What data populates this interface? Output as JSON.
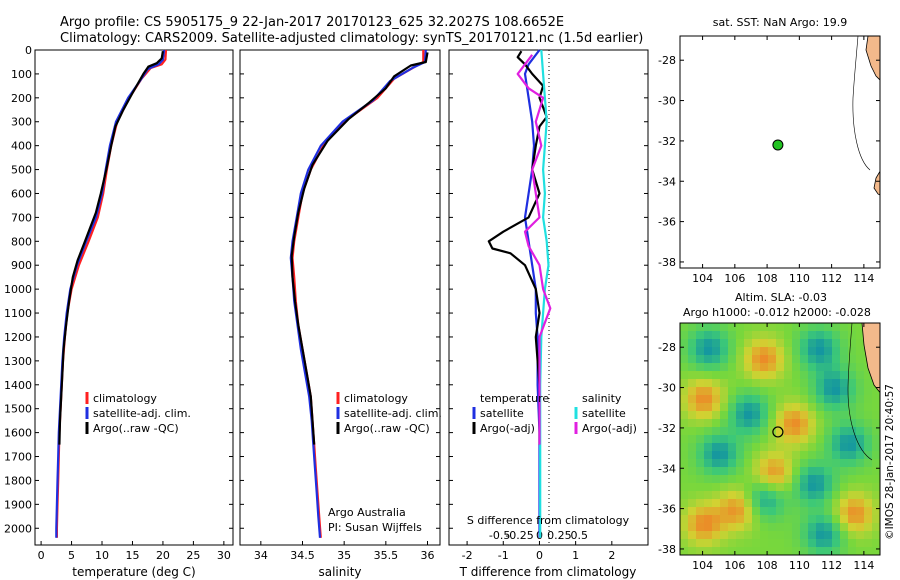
{
  "header": {
    "line1": "Argo profile: CS 5905175_9 22-Jan-2017 20170123_625 32.2027S 108.6652E",
    "line2": "Climatology: CARS2009. Satellite-adjusted climatology: synTS_20170121.nc (1.5d earlier)"
  },
  "colors": {
    "red": "#ff2020",
    "blue": "#1f2fe0",
    "black": "#000000",
    "cyan": "#20e0e0",
    "magenta": "#e020e0",
    "land": "#f3b98b"
  },
  "chart_data": [
    {
      "id": "temperature",
      "type": "line",
      "xlabel": "temperature (deg C)",
      "ylabel": "",
      "xlim": [
        -1,
        31.5
      ],
      "ylim": [
        2070,
        0
      ],
      "xticks": [
        0,
        5,
        10,
        15,
        20,
        25,
        30
      ],
      "yticks": [
        0,
        100,
        200,
        300,
        400,
        500,
        600,
        700,
        800,
        900,
        1000,
        1100,
        1200,
        1300,
        1400,
        1500,
        1600,
        1700,
        1800,
        1900,
        2000
      ],
      "ytick_labels": [
        "0",
        "100",
        "200",
        "300",
        "400",
        "500",
        "600",
        "700",
        "800",
        "900",
        "1000",
        "1100",
        "1200",
        "1300",
        "1400",
        "1500",
        "1600",
        "1700",
        "1800",
        "1900",
        "2000"
      ],
      "legend": [
        "climatology",
        "satellite-adj. clim.",
        "Argo(..raw -QC)"
      ],
      "series": [
        {
          "name": "climatology",
          "color": "red",
          "points": [
            [
              20.5,
              0
            ],
            [
              20.4,
              40
            ],
            [
              19.8,
              60
            ],
            [
              18,
              75
            ],
            [
              16.5,
              120
            ],
            [
              14.5,
              200
            ],
            [
              12.5,
              300
            ],
            [
              11.5,
              400
            ],
            [
              10.8,
              500
            ],
            [
              10.2,
              600
            ],
            [
              9.3,
              700
            ],
            [
              7.8,
              800
            ],
            [
              6.2,
              900
            ],
            [
              5,
              1000
            ],
            [
              4.3,
              1100
            ],
            [
              3.9,
              1200
            ],
            [
              3.6,
              1300
            ],
            [
              3.4,
              1400
            ],
            [
              3.2,
              1500
            ],
            [
              3.0,
              1600
            ],
            [
              2.9,
              1700
            ],
            [
              2.8,
              1800
            ],
            [
              2.7,
              1900
            ],
            [
              2.6,
              2000
            ],
            [
              2.6,
              2040
            ]
          ]
        },
        {
          "name": "satellite-adj. clim.",
          "color": "blue",
          "points": [
            [
              20.2,
              0
            ],
            [
              20.0,
              40
            ],
            [
              19.3,
              60
            ],
            [
              17.5,
              80
            ],
            [
              16.2,
              130
            ],
            [
              14.3,
              200
            ],
            [
              12.3,
              300
            ],
            [
              11.3,
              400
            ],
            [
              10.6,
              500
            ],
            [
              10.0,
              600
            ],
            [
              9.0,
              700
            ],
            [
              7.4,
              800
            ],
            [
              5.9,
              900
            ],
            [
              4.8,
              1000
            ],
            [
              4.2,
              1100
            ],
            [
              3.8,
              1200
            ],
            [
              3.5,
              1300
            ],
            [
              3.3,
              1400
            ],
            [
              3.1,
              1500
            ],
            [
              2.9,
              1600
            ],
            [
              2.8,
              1700
            ],
            [
              2.7,
              1800
            ],
            [
              2.6,
              1900
            ],
            [
              2.5,
              2000
            ],
            [
              2.5,
              2040
            ]
          ]
        },
        {
          "name": "Argo(..raw -QC)",
          "color": "black",
          "points": [
            [
              20.0,
              5
            ],
            [
              19.8,
              35
            ],
            [
              19.0,
              55
            ],
            [
              17.6,
              70
            ],
            [
              16.8,
              100
            ],
            [
              15.0,
              180
            ],
            [
              13.5,
              250
            ],
            [
              12.2,
              320
            ],
            [
              11.5,
              400
            ],
            [
              10.7,
              500
            ],
            [
              9.8,
              600
            ],
            [
              9.0,
              680
            ],
            [
              7.2,
              800
            ],
            [
              6.0,
              880
            ],
            [
              5.2,
              950
            ],
            [
              4.6,
              1050
            ],
            [
              4.1,
              1150
            ],
            [
              3.7,
              1250
            ],
            [
              3.5,
              1350
            ],
            [
              3.3,
              1450
            ],
            [
              3.1,
              1550
            ],
            [
              3.0,
              1650
            ]
          ]
        }
      ]
    },
    {
      "id": "salinity",
      "type": "line",
      "xlabel": "salinity",
      "xlim": [
        33.75,
        36.15
      ],
      "ylim": [
        2070,
        0
      ],
      "xticks": [
        34,
        34.5,
        35,
        35.5,
        36
      ],
      "xtick_labels": [
        "34",
        "34.5",
        "35",
        "35.5",
        "36"
      ],
      "legend": [
        "climatology",
        "satellite-adj. clim.",
        "Argo(..raw -QC)"
      ],
      "annotation": [
        "Argo Australia",
        "PI: Susan Wijffels"
      ],
      "series": [
        {
          "name": "climatology",
          "color": "red",
          "points": [
            [
              35.95,
              0
            ],
            [
              35.95,
              50
            ],
            [
              35.85,
              70
            ],
            [
              35.6,
              120
            ],
            [
              35.4,
              200
            ],
            [
              35.0,
              300
            ],
            [
              34.75,
              400
            ],
            [
              34.6,
              500
            ],
            [
              34.5,
              600
            ],
            [
              34.45,
              700
            ],
            [
              34.4,
              800
            ],
            [
              34.38,
              870
            ],
            [
              34.4,
              950
            ],
            [
              34.42,
              1050
            ],
            [
              34.45,
              1150
            ],
            [
              34.5,
              1250
            ],
            [
              34.55,
              1350
            ],
            [
              34.6,
              1450
            ],
            [
              34.62,
              1550
            ],
            [
              34.64,
              1650
            ],
            [
              34.66,
              1750
            ],
            [
              34.68,
              1850
            ],
            [
              34.7,
              1950
            ],
            [
              34.72,
              2040
            ]
          ]
        },
        {
          "name": "satellite-adj. clim.",
          "color": "blue",
          "points": [
            [
              35.98,
              0
            ],
            [
              35.97,
              50
            ],
            [
              35.82,
              75
            ],
            [
              35.55,
              130
            ],
            [
              35.35,
              210
            ],
            [
              34.98,
              300
            ],
            [
              34.72,
              400
            ],
            [
              34.57,
              500
            ],
            [
              34.48,
              600
            ],
            [
              34.43,
              700
            ],
            [
              34.38,
              800
            ],
            [
              34.36,
              870
            ],
            [
              34.38,
              950
            ],
            [
              34.4,
              1050
            ],
            [
              34.44,
              1150
            ],
            [
              34.48,
              1250
            ],
            [
              34.53,
              1350
            ],
            [
              34.58,
              1450
            ],
            [
              34.61,
              1550
            ],
            [
              34.63,
              1650
            ],
            [
              34.65,
              1750
            ],
            [
              34.67,
              1850
            ],
            [
              34.69,
              1950
            ],
            [
              34.71,
              2040
            ]
          ]
        },
        {
          "name": "Argo(..raw -QC)",
          "color": "black",
          "points": [
            [
              36.0,
              10
            ],
            [
              35.98,
              50
            ],
            [
              35.8,
              65
            ],
            [
              35.6,
              110
            ],
            [
              35.5,
              160
            ],
            [
              35.3,
              220
            ],
            [
              35.05,
              290
            ],
            [
              34.8,
              380
            ],
            [
              34.62,
              480
            ],
            [
              34.52,
              580
            ],
            [
              34.45,
              680
            ],
            [
              34.4,
              780
            ],
            [
              34.37,
              860
            ],
            [
              34.38,
              950
            ],
            [
              34.41,
              1050
            ],
            [
              34.45,
              1150
            ],
            [
              34.5,
              1250
            ],
            [
              34.55,
              1350
            ],
            [
              34.6,
              1450
            ],
            [
              34.62,
              1550
            ],
            [
              34.64,
              1650
            ]
          ]
        }
      ]
    },
    {
      "id": "difference",
      "type": "line",
      "xlabel": "T difference from climatology",
      "xlabel_top": "S difference from climatology",
      "xlim": [
        -2.5,
        3
      ],
      "ylim": [
        2070,
        0
      ],
      "xticks": [
        -2,
        -1,
        0,
        1,
        2
      ],
      "xtick_labels": [
        "-2",
        "-1",
        "0",
        "1",
        "2"
      ],
      "s_ticks": [
        -0.5,
        -0.25,
        0,
        0.25,
        0.5
      ],
      "s_tick_labels": [
        "-0.5",
        "-0.25",
        "0",
        "0.25",
        "0.5"
      ],
      "legend_t_title": "temperature",
      "legend_s_title": "salinity",
      "legend": [
        "satellite",
        "Argo(-adj)",
        "satellite",
        "Argo(-adj)"
      ],
      "series": [
        {
          "name": "T satellite",
          "color": "blue",
          "points": [
            [
              0,
              0
            ],
            [
              -0.3,
              60
            ],
            [
              -0.4,
              100
            ],
            [
              -0.3,
              200
            ],
            [
              -0.2,
              300
            ],
            [
              -0.15,
              400
            ],
            [
              -0.2,
              500
            ],
            [
              -0.3,
              600
            ],
            [
              -0.4,
              700
            ],
            [
              -0.3,
              800
            ],
            [
              -0.2,
              900
            ],
            [
              -0.1,
              1000
            ],
            [
              -0.1,
              1100
            ],
            [
              -0.05,
              1200
            ],
            [
              -0.05,
              1400
            ],
            [
              0,
              1600
            ],
            [
              0,
              2040
            ]
          ]
        },
        {
          "name": "T Argo(-adj)",
          "color": "black",
          "points": [
            [
              -0.5,
              5
            ],
            [
              -0.6,
              30
            ],
            [
              -0.4,
              60
            ],
            [
              -0.2,
              100
            ],
            [
              0.1,
              150
            ],
            [
              0,
              200
            ],
            [
              0.2,
              280
            ],
            [
              0,
              320
            ],
            [
              -0.1,
              400
            ],
            [
              -0.2,
              500
            ],
            [
              0,
              600
            ],
            [
              -0.3,
              700
            ],
            [
              -1.0,
              760
            ],
            [
              -1.4,
              800
            ],
            [
              -1.3,
              830
            ],
            [
              -0.8,
              850
            ],
            [
              -0.4,
              900
            ],
            [
              -0.1,
              1000
            ],
            [
              0,
              1100
            ],
            [
              -0.1,
              1200
            ],
            [
              -0.05,
              1300
            ],
            [
              0,
              1400
            ],
            [
              0,
              1650
            ]
          ]
        },
        {
          "name": "S satellite",
          "color": "cyan",
          "points": [
            [
              0.05,
              0
            ],
            [
              0.1,
              100
            ],
            [
              0.15,
              200
            ],
            [
              0.2,
              300
            ],
            [
              0.15,
              400
            ],
            [
              0.1,
              500
            ],
            [
              0.15,
              600
            ],
            [
              0.1,
              700
            ],
            [
              0.2,
              800
            ],
            [
              0.25,
              900
            ],
            [
              0.15,
              1000
            ],
            [
              0.1,
              1100
            ],
            [
              0.05,
              1200
            ],
            [
              0.02,
              1400
            ],
            [
              0.02,
              2040
            ]
          ]
        },
        {
          "name": "S Argo(-adj)",
          "color": "magenta",
          "points": [
            [
              -0.2,
              20
            ],
            [
              -0.6,
              100
            ],
            [
              -0.3,
              160
            ],
            [
              0.1,
              200
            ],
            [
              -0.1,
              300
            ],
            [
              0.05,
              400
            ],
            [
              -0.2,
              500
            ],
            [
              -0.1,
              600
            ],
            [
              0,
              700
            ],
            [
              -0.4,
              760
            ],
            [
              -0.3,
              820
            ],
            [
              0,
              900
            ],
            [
              0.1,
              1000
            ],
            [
              0.3,
              1080
            ],
            [
              0.2,
              1120
            ],
            [
              0,
              1200
            ],
            [
              0,
              1650
            ]
          ]
        }
      ]
    },
    {
      "id": "sst_map",
      "type": "scatter",
      "title": "sat. SST: NaN Argo: 19.9",
      "xlim": [
        102.6,
        115
      ],
      "ylim": [
        -38.3,
        -26.8
      ],
      "xticks": [
        104,
        106,
        108,
        110,
        112,
        114
      ],
      "xtick_labels": [
        "104",
        "106",
        "108",
        "110",
        "112",
        "114"
      ],
      "yticks": [
        -28,
        -30,
        -32,
        -34,
        -36,
        -38
      ],
      "ytick_labels": [
        "-28",
        "-30",
        "-32",
        "-34",
        "-36",
        "-38"
      ],
      "point": [
        108.67,
        -32.2
      ]
    },
    {
      "id": "sla_map",
      "type": "heatmap",
      "title_line1": "Altim. SLA: -0.03",
      "title_line2": "Argo h1000: -0.012 h2000: -0.028",
      "xlim": [
        102.6,
        115
      ],
      "ylim": [
        -38.3,
        -26.8
      ],
      "xticks": [
        104,
        106,
        108,
        110,
        112,
        114
      ],
      "xtick_labels": [
        "104",
        "106",
        "108",
        "110",
        "112",
        "114"
      ],
      "yticks": [
        -28,
        -30,
        -32,
        -34,
        -36,
        -38
      ],
      "ytick_labels": [
        "-28",
        "-30",
        "-32",
        "-34",
        "-36",
        "-38"
      ],
      "point": [
        108.67,
        -32.2
      ]
    }
  ],
  "credit": "©IMOS 28-Jan-2017 20:40:57"
}
